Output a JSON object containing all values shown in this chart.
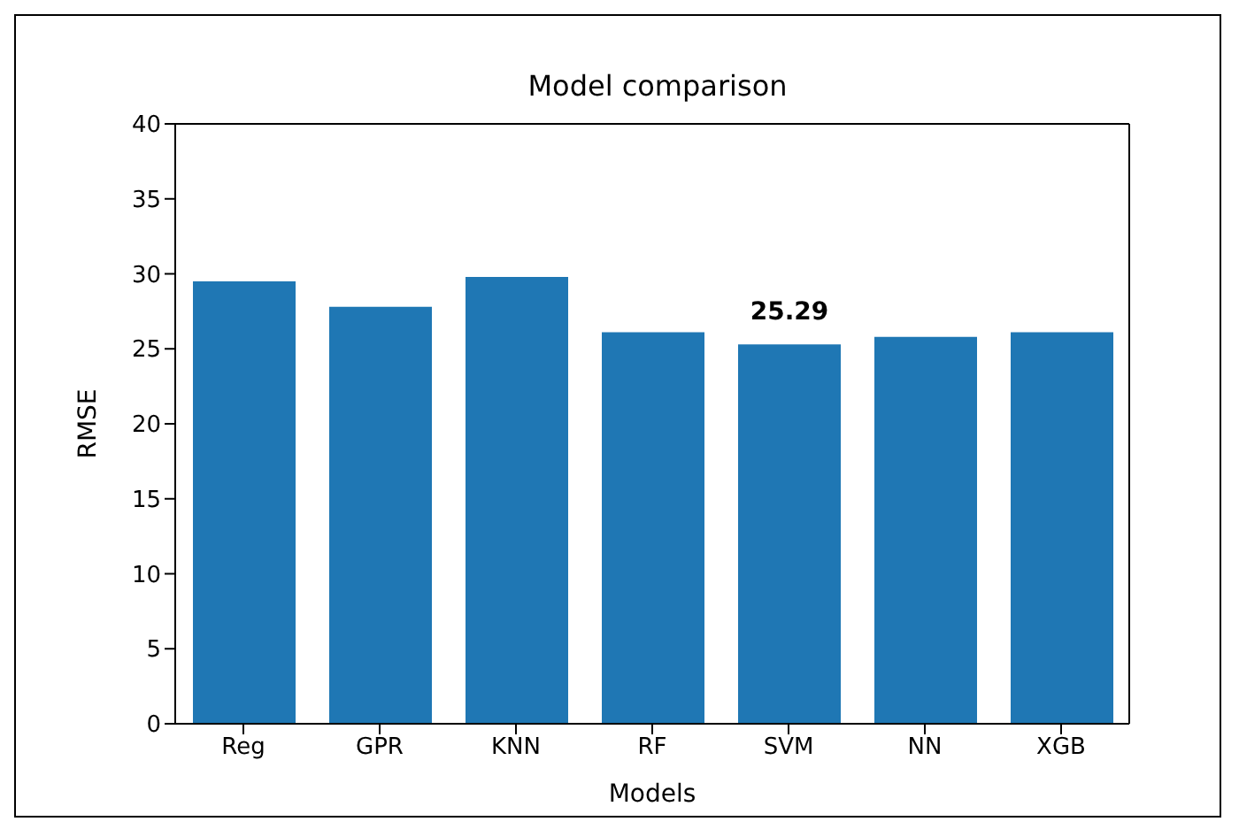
{
  "chart_data": {
    "type": "bar",
    "title": "Model comparison",
    "xlabel": "Models",
    "ylabel": "RMSE",
    "categories": [
      "Reg",
      "GPR",
      "KNN",
      "RF",
      "SVM",
      "NN",
      "XGB"
    ],
    "values": [
      29.5,
      27.8,
      29.8,
      26.1,
      25.29,
      25.8,
      26.1
    ],
    "value_labels": [
      null,
      null,
      null,
      null,
      "25.29",
      null,
      null
    ],
    "color": "#1f77b4",
    "ylim": [
      0,
      40
    ],
    "yticks": [
      0,
      5,
      10,
      15,
      20,
      25,
      30,
      35,
      40
    ],
    "grid": false
  }
}
